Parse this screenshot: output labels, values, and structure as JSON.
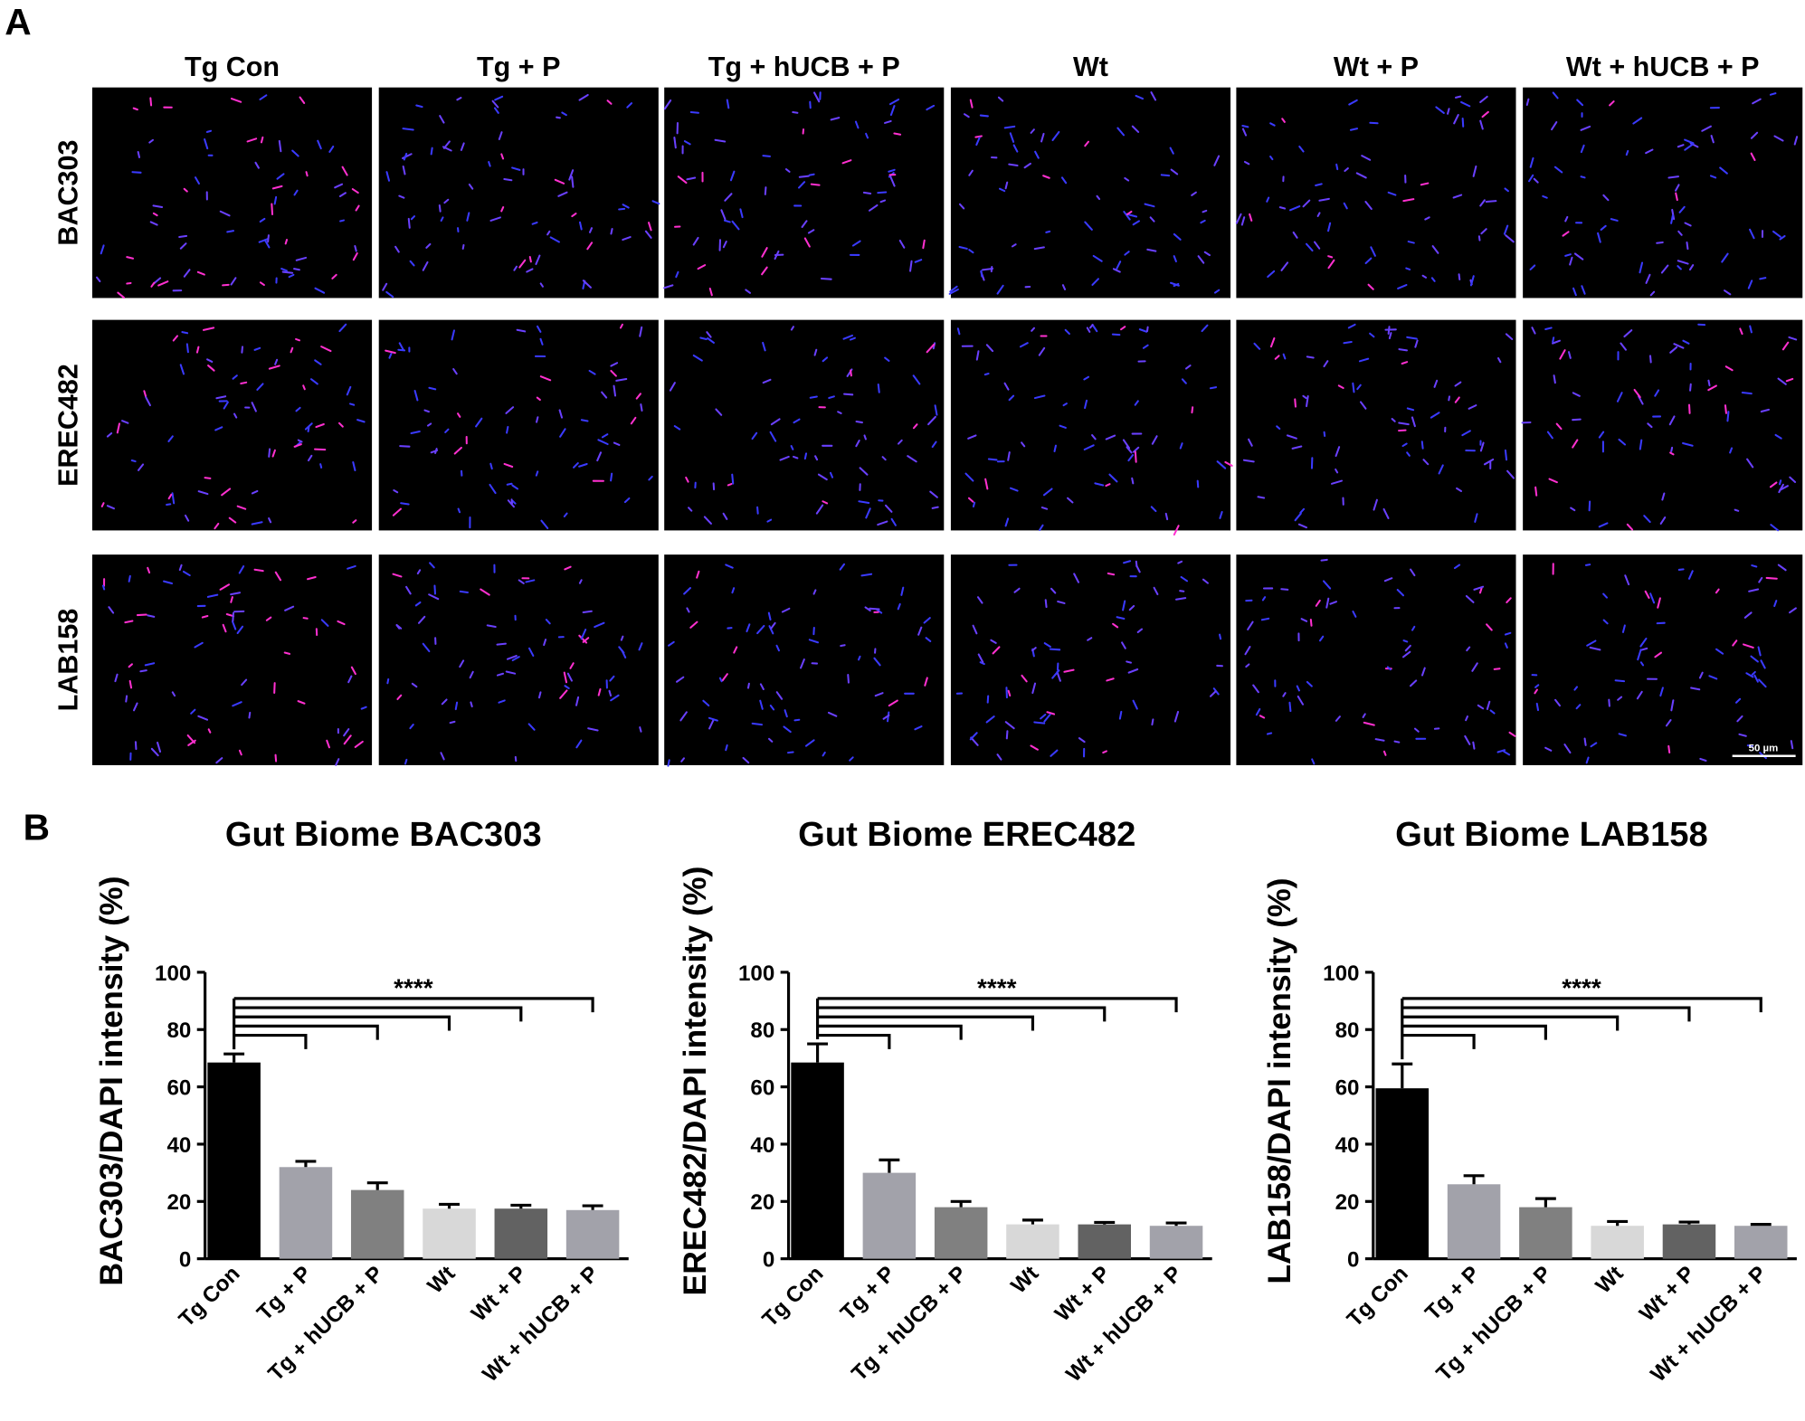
{
  "panel_a": {
    "label": "A",
    "columns": [
      "Tg Con",
      "Tg + P",
      "Tg + hUCB + P",
      "Wt",
      "Wt + P",
      "Wt + hUCB + P"
    ],
    "rows": [
      "BAC303",
      "EREC482",
      "LAB158"
    ],
    "scale_bar": "50 µm"
  },
  "panel_b_label": "B",
  "chart_data": [
    {
      "type": "bar",
      "title": "Gut Biome BAC303",
      "y_label": "BAC303/DAPI intensity (%)",
      "categories": [
        "Tg Con",
        "Tg + P",
        "Tg + hUCB + P",
        "Wt",
        "Wt + P",
        "Wt + hUCB + P"
      ],
      "values": [
        68.5,
        32,
        24,
        17.5,
        17.5,
        17
      ],
      "errors": [
        3,
        2,
        2.5,
        1.5,
        1.2,
        1.5
      ],
      "colors": [
        "#000000",
        "#a2a2aa",
        "#808080",
        "#d8d8d8",
        "#626262",
        "#a2a2aa"
      ],
      "ylim": [
        0,
        100
      ],
      "yticks": [
        0,
        20,
        40,
        60,
        80,
        100
      ],
      "significance": "****"
    },
    {
      "type": "bar",
      "title": "Gut Biome EREC482",
      "y_label": "EREC482/DAPI intensity (%)",
      "categories": [
        "Tg Con",
        "Tg + P",
        "Tg + hUCB + P",
        "Wt",
        "Wt + P",
        "Wt + hUCB + P"
      ],
      "values": [
        68.5,
        30,
        18,
        12,
        12,
        11.5
      ],
      "errors": [
        6.5,
        4.5,
        2,
        1.5,
        0.7,
        1
      ],
      "colors": [
        "#000000",
        "#a2a2aa",
        "#808080",
        "#d8d8d8",
        "#626262",
        "#a2a2aa"
      ],
      "ylim": [
        0,
        100
      ],
      "yticks": [
        0,
        20,
        40,
        60,
        80,
        100
      ],
      "significance": "****"
    },
    {
      "type": "bar",
      "title": "Gut Biome LAB158",
      "y_label": "LAB158/DAPI intensity (%)",
      "categories": [
        "Tg Con",
        "Tg + P",
        "Tg + hUCB + P",
        "Wt",
        "Wt + P",
        "Wt + hUCB + P"
      ],
      "values": [
        59.5,
        26,
        18,
        11.5,
        12,
        11.5
      ],
      "errors": [
        8.5,
        3,
        3,
        1.5,
        0.8,
        0.5
      ],
      "colors": [
        "#000000",
        "#a2a2aa",
        "#808080",
        "#d8d8d8",
        "#626262",
        "#a2a2aa"
      ],
      "ylim": [
        0,
        100
      ],
      "yticks": [
        0,
        20,
        40,
        60,
        80,
        100
      ],
      "significance": "****"
    }
  ]
}
